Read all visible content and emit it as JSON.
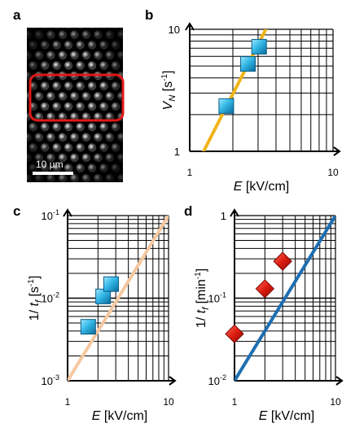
{
  "panel_a": {
    "letter": "a",
    "scale_bar_label": "10 µm",
    "colors": {
      "background": "#000000",
      "highlight_box": "#e01818",
      "scale_bar": "#ffffff"
    }
  },
  "chart_data": [
    {
      "panel": "b",
      "type": "scatter",
      "x_scale": "log",
      "y_scale": "log",
      "xlim": [
        1,
        10
      ],
      "ylim": [
        1,
        10
      ],
      "x_ticks": [
        "1",
        "10"
      ],
      "y_ticks": [
        "1",
        "10"
      ],
      "xlabel": {
        "symbol": "E",
        "unit": "[kV/cm]"
      },
      "ylabel": {
        "symbol": "V",
        "sub": "N",
        "unit_pre": "[s",
        "unit_sup": "-1",
        "unit_post": "]"
      },
      "grid": true,
      "marker": "square",
      "colors": {
        "marker": "#1fa8d8",
        "fit_line": "#f0b418"
      },
      "points": [
        [
          1.8,
          2.35
        ],
        [
          2.55,
          5.2
        ],
        [
          3.05,
          7.2
        ]
      ],
      "fit_line": [
        [
          1.25,
          1.0
        ],
        [
          3.4,
          10.0
        ]
      ]
    },
    {
      "panel": "c",
      "type": "scatter",
      "x_scale": "log",
      "y_scale": "log",
      "xlim": [
        1,
        10
      ],
      "ylim": [
        0.001,
        0.1
      ],
      "x_ticks": [
        "1",
        "10"
      ],
      "y_ticks": [
        {
          "base": "10",
          "exp": "-3"
        },
        {
          "base": "10",
          "exp": "-2"
        },
        {
          "base": "10",
          "exp": "-1"
        }
      ],
      "xlabel": {
        "symbol": "E",
        "unit": "[kV/cm]"
      },
      "ylabel": {
        "pre": "1/ ",
        "symbol": "t",
        "sub": "f",
        "unit_pre": "[s",
        "unit_sup": "-1",
        "unit_post": "]"
      },
      "grid": true,
      "marker": "square",
      "colors": {
        "marker": "#1fa8d8",
        "fit_line": "#f5c8a0"
      },
      "points": [
        [
          1.6,
          0.0045
        ],
        [
          2.25,
          0.0105
        ],
        [
          2.7,
          0.0148
        ]
      ],
      "fit_line": [
        [
          1.0,
          0.001
        ],
        [
          10.0,
          0.1
        ]
      ]
    },
    {
      "panel": "d",
      "type": "scatter",
      "x_scale": "log",
      "y_scale": "log",
      "xlim": [
        1,
        10
      ],
      "ylim": [
        0.01,
        1
      ],
      "x_ticks": [
        "1",
        "10"
      ],
      "y_ticks": [
        {
          "base": "10",
          "exp": "-2"
        },
        {
          "base": "10",
          "exp": "-1"
        },
        {
          "base": "1",
          "exp": ""
        }
      ],
      "xlabel": {
        "symbol": "E",
        "unit": "[kV/cm]"
      },
      "ylabel": {
        "pre": "1/ ",
        "symbol": "t",
        "sub": "f",
        "unit_pre": "[min",
        "unit_sup": "-1",
        "unit_post": "]"
      },
      "grid": true,
      "marker": "diamond",
      "colors": {
        "marker": "#d81a10",
        "fit_line": "#1e6eb0"
      },
      "points": [
        [
          1.0,
          0.037
        ],
        [
          2.0,
          0.13
        ],
        [
          3.0,
          0.28
        ]
      ],
      "fit_line": [
        [
          1.0,
          0.01
        ],
        [
          10.0,
          1.0
        ]
      ]
    }
  ]
}
